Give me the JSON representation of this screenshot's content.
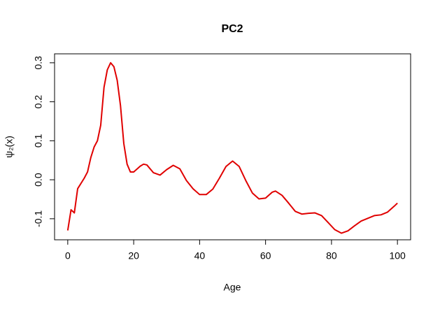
{
  "chart_data": {
    "type": "line",
    "title": "PC2",
    "x_label": "Age",
    "y_label": "ψ₂(x)",
    "x": [
      0,
      1,
      2,
      3,
      5,
      6,
      7,
      8,
      9,
      10,
      11,
      12,
      13,
      14,
      15,
      16,
      17,
      18,
      19,
      20,
      22,
      23,
      24,
      26,
      28,
      30,
      32,
      34,
      36,
      38,
      40,
      42,
      44,
      46,
      48,
      50,
      52,
      54,
      56,
      58,
      60,
      62,
      63,
      65,
      67,
      69,
      71,
      73,
      75,
      77,
      79,
      81,
      83,
      85,
      87,
      89,
      91,
      93,
      95,
      97,
      99,
      100
    ],
    "series": [
      {
        "color": "#e00000",
        "values": [
          -0.13,
          -0.077,
          -0.085,
          -0.023,
          0.004,
          0.02,
          0.057,
          0.084,
          0.1,
          0.14,
          0.237,
          0.282,
          0.3,
          0.29,
          0.255,
          0.19,
          0.093,
          0.04,
          0.02,
          0.02,
          0.035,
          0.04,
          0.038,
          0.018,
          0.012,
          0.026,
          0.037,
          0.028,
          -0.002,
          -0.023,
          -0.038,
          -0.038,
          -0.024,
          0.004,
          0.034,
          0.048,
          0.034,
          -0.002,
          -0.034,
          -0.049,
          -0.047,
          -0.032,
          -0.029,
          -0.04,
          -0.06,
          -0.081,
          -0.088,
          -0.086,
          -0.085,
          -0.092,
          -0.11,
          -0.128,
          -0.137,
          -0.131,
          -0.118,
          -0.106,
          -0.099,
          -0.092,
          -0.09,
          -0.083,
          -0.068,
          -0.06
        ]
      }
    ],
    "xlim": [
      -4,
      104
    ],
    "ylim": [
      -0.154,
      0.323
    ],
    "xticks": [
      0,
      20,
      40,
      60,
      80,
      100
    ],
    "yticks": [
      -0.1,
      {
        "value": 0,
        "label": "0.0"
      },
      0.1,
      0.2,
      0.3
    ]
  }
}
